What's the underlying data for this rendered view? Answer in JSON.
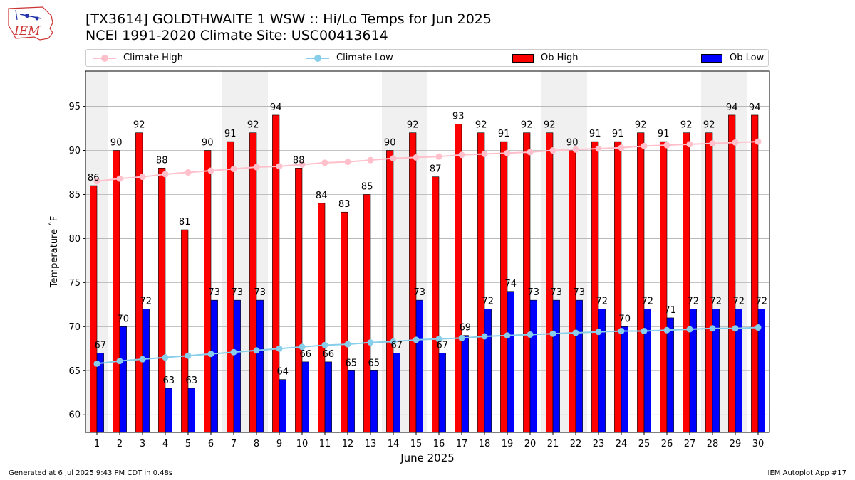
{
  "header": {
    "title_line1": "[TX3614] GOLDTHWAITE 1 WSW :: Hi/Lo Temps for Jun 2025",
    "title_line2": "NCEI 1991-2020 Climate Site: USC00413614",
    "logo_text": "IEM"
  },
  "legend": {
    "position": "top",
    "climate_high": "Climate High",
    "climate_low": "Climate Low",
    "ob_high": "Ob High",
    "ob_low": "Ob Low"
  },
  "footer": {
    "generated": "Generated at 6 Jul 2025 9:43 PM CDT in 0.48s",
    "app": "IEM Autoplot App #17"
  },
  "colors": {
    "ob_high": "#ff0000",
    "ob_low": "#0000ff",
    "climate_high": "#ffc0cb",
    "climate_low": "#87ceeb",
    "weekend_shade": "#f0f0f0",
    "grid": "#b0b0b0"
  },
  "chart_data": {
    "type": "bar",
    "xlabel": "June 2025",
    "ylabel": "Temperature ˚F",
    "ylim": [
      58,
      99
    ],
    "yticks": [
      60,
      65,
      70,
      75,
      80,
      85,
      90,
      95
    ],
    "grid": "horizontal",
    "categories": [
      "1",
      "2",
      "3",
      "4",
      "5",
      "6",
      "7",
      "8",
      "9",
      "10",
      "11",
      "12",
      "13",
      "14",
      "15",
      "16",
      "17",
      "18",
      "19",
      "20",
      "21",
      "22",
      "23",
      "24",
      "25",
      "26",
      "27",
      "28",
      "29",
      "30"
    ],
    "shaded_days": [
      1,
      7,
      8,
      14,
      15,
      21,
      22,
      28,
      29
    ],
    "series": [
      {
        "name": "Ob High",
        "kind": "bar",
        "values": [
          86,
          90,
          92,
          88,
          81,
          90,
          91,
          92,
          94,
          88,
          84,
          83,
          85,
          90,
          92,
          87,
          93,
          92,
          91,
          92,
          92,
          90,
          91,
          91,
          92,
          91,
          92,
          92,
          94,
          94
        ]
      },
      {
        "name": "Ob Low",
        "kind": "bar",
        "values": [
          67,
          70,
          72,
          63,
          63,
          73,
          73,
          73,
          64,
          66,
          66,
          65,
          65,
          67,
          73,
          67,
          69,
          72,
          74,
          73,
          73,
          73,
          72,
          70,
          72,
          71,
          72,
          72,
          72,
          72
        ]
      },
      {
        "name": "Climate High",
        "kind": "line",
        "values": [
          86.5,
          86.8,
          87.0,
          87.3,
          87.5,
          87.7,
          87.9,
          88.1,
          88.2,
          88.4,
          88.6,
          88.7,
          88.9,
          89.1,
          89.2,
          89.3,
          89.5,
          89.6,
          89.7,
          89.8,
          90.0,
          90.1,
          90.2,
          90.3,
          90.5,
          90.6,
          90.7,
          90.8,
          90.9,
          91.0
        ]
      },
      {
        "name": "Climate Low",
        "kind": "line",
        "values": [
          65.8,
          66.1,
          66.3,
          66.5,
          66.7,
          66.9,
          67.1,
          67.3,
          67.5,
          67.7,
          67.9,
          68.0,
          68.2,
          68.3,
          68.5,
          68.6,
          68.7,
          68.9,
          69.0,
          69.1,
          69.2,
          69.3,
          69.4,
          69.5,
          69.5,
          69.6,
          69.7,
          69.8,
          69.8,
          69.9
        ]
      }
    ]
  }
}
